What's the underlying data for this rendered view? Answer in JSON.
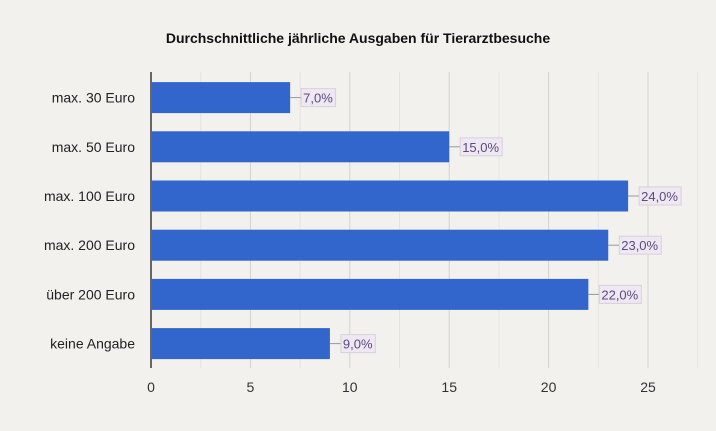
{
  "chart_data": {
    "type": "bar",
    "orientation": "horizontal",
    "title": "Durchschnittliche jährliche Ausgaben für Tierarztbesuche",
    "categories": [
      "max. 30 Euro",
      "max. 50 Euro",
      "max. 100 Euro",
      "max. 200 Euro",
      "über 200 Euro",
      "keine Angabe"
    ],
    "values": [
      7,
      15,
      24,
      23,
      22,
      9
    ],
    "data_labels": [
      "7,0%",
      "15,0%",
      "24,0%",
      "23,0%",
      "22,0%",
      "9,0%"
    ],
    "xticks": [
      "0",
      "5",
      "10",
      "15",
      "20",
      "25"
    ],
    "xlim": [
      0,
      27.5
    ],
    "grid": true,
    "bar_color": "#3366cc",
    "label_color": "#5b4a7c"
  }
}
